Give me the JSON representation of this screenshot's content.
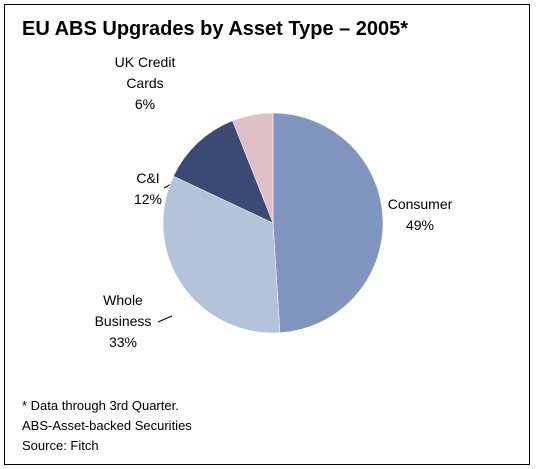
{
  "chart_data": {
    "type": "pie",
    "title": "EU ABS Upgrades by Asset Type – 2005*",
    "categories": [
      "Consumer",
      "Whole Business",
      "C&I",
      "UK Credit Cards"
    ],
    "values": [
      49,
      33,
      12,
      6
    ],
    "value_labels": [
      "49%",
      "33%",
      "12%",
      "6%"
    ],
    "colors": [
      "#8096c0",
      "#b3c4da",
      "#3b4a72",
      "#e0c0c8"
    ],
    "notes": [
      "* Data through 3rd Quarter.",
      "ABS-Asset-backed Securities",
      "Source: Fitch"
    ]
  }
}
